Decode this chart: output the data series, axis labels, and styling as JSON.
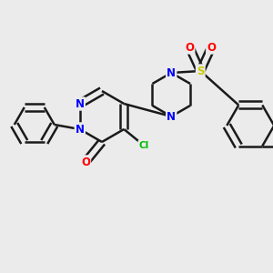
{
  "background_color": "#ebebeb",
  "bond_color": "#1a1a1a",
  "bond_width": 1.8,
  "atom_colors": {
    "N": "#0000ff",
    "O": "#ff0000",
    "Cl": "#00bb00",
    "S": "#cccc00",
    "C": "#1a1a1a"
  },
  "font_size": 8.5,
  "figsize": [
    3.0,
    3.0
  ],
  "dpi": 100
}
